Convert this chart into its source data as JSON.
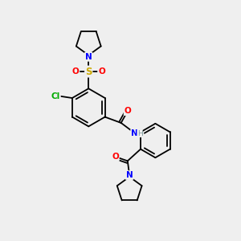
{
  "background_color": "#efefef",
  "atom_colors": {
    "C": "#000000",
    "N": "#0000ff",
    "O": "#ff0000",
    "S": "#ccaa00",
    "Cl": "#00aa00",
    "H": "#7a9999"
  },
  "bond_color": "#000000",
  "bond_lw": 1.3,
  "figsize": [
    3.0,
    3.0
  ],
  "dpi": 100
}
